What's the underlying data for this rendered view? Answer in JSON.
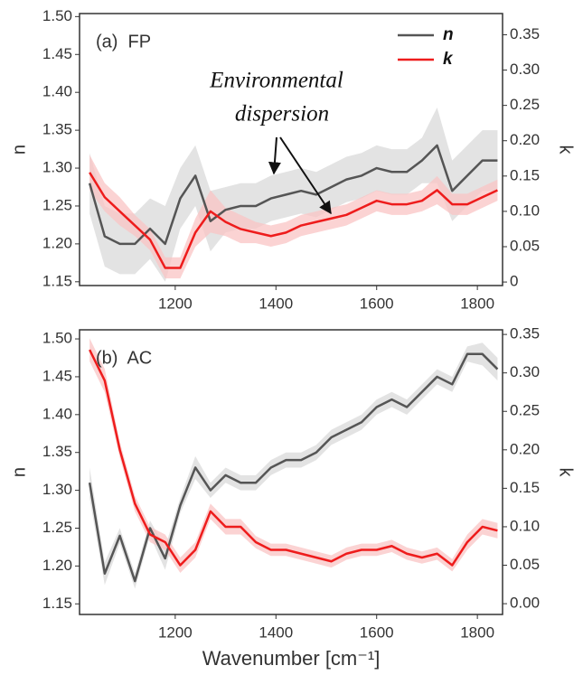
{
  "chart_data": [
    {
      "type": "line",
      "label": "(a)  FP",
      "ylabel": "n",
      "y2label": "k",
      "annotation": [
        "Environmental",
        "dispersion"
      ],
      "x": [
        1030,
        1060,
        1090,
        1120,
        1150,
        1180,
        1210,
        1240,
        1270,
        1300,
        1330,
        1360,
        1390,
        1420,
        1450,
        1480,
        1510,
        1540,
        1570,
        1600,
        1630,
        1660,
        1690,
        1720,
        1750,
        1780,
        1810,
        1840
      ],
      "xlim": [
        1010,
        1850
      ],
      "xticks": [
        1200,
        1400,
        1600,
        1800
      ],
      "ylim": [
        1.145,
        1.504
      ],
      "yticks": [
        1.15,
        {
          "value": 1.2,
          "label": "1.20"
        },
        1.25,
        {
          "value": 1.3,
          "label": "1.30"
        },
        1.35,
        {
          "value": 1.4,
          "label": "1.40"
        },
        1.45,
        {
          "value": 1.5,
          "label": "1.50"
        }
      ],
      "y2lim": [
        -0.005,
        0.38
      ],
      "y2ticks": [
        0,
        0.05,
        {
          "value": 0.1,
          "label": "0.10"
        },
        0.15,
        {
          "value": 0.2,
          "label": "0.20"
        },
        0.25,
        {
          "value": 0.3,
          "label": "0.30"
        },
        0.35
      ],
      "series": [
        {
          "name": "n",
          "color": "#555555",
          "band_color": "#d9d9d9",
          "values": [
            1.28,
            1.21,
            1.2,
            1.2,
            1.22,
            1.2,
            1.26,
            1.29,
            1.23,
            1.245,
            1.25,
            1.25,
            1.26,
            1.265,
            1.27,
            1.265,
            1.275,
            1.285,
            1.29,
            1.3,
            1.295,
            1.295,
            1.31,
            1.33,
            1.27,
            1.29,
            1.31,
            1.31
          ],
          "error": [
            0.04,
            0.04,
            0.04,
            0.04,
            0.04,
            0.05,
            0.04,
            0.04,
            0.04,
            0.03,
            0.03,
            0.03,
            0.03,
            0.03,
            0.03,
            0.03,
            0.03,
            0.03,
            0.03,
            0.03,
            0.03,
            0.03,
            0.03,
            0.05,
            0.04,
            0.04,
            0.04,
            0.04
          ]
        },
        {
          "name": "k",
          "color": "#ee1c1c",
          "band_color": "#f9c4c4",
          "axis": "y2",
          "values": [
            0.155,
            0.12,
            0.1,
            0.08,
            0.06,
            0.02,
            0.02,
            0.07,
            0.1,
            0.085,
            0.075,
            0.07,
            0.065,
            0.07,
            0.08,
            0.085,
            0.09,
            0.095,
            0.105,
            0.115,
            0.11,
            0.11,
            0.115,
            0.13,
            0.11,
            0.11,
            0.12,
            0.13
          ],
          "error": [
            0.025,
            0.02,
            0.02,
            0.015,
            0.015,
            0.015,
            0.015,
            0.02,
            0.03,
            0.02,
            0.02,
            0.015,
            0.015,
            0.015,
            0.015,
            0.015,
            0.015,
            0.015,
            0.015,
            0.015,
            0.015,
            0.015,
            0.015,
            0.02,
            0.015,
            0.015,
            0.015,
            0.015
          ]
        }
      ]
    },
    {
      "type": "line",
      "label": "(b)  AC",
      "ylabel": "n",
      "y2label": "k",
      "xlabel": "Wavenumber [cm⁻¹]",
      "x": [
        1030,
        1060,
        1090,
        1120,
        1150,
        1180,
        1210,
        1240,
        1270,
        1300,
        1330,
        1360,
        1390,
        1420,
        1450,
        1480,
        1510,
        1540,
        1570,
        1600,
        1630,
        1660,
        1690,
        1720,
        1750,
        1780,
        1810,
        1840
      ],
      "xlim": [
        1010,
        1850
      ],
      "xticks": [
        1200,
        1400,
        1600,
        1800
      ],
      "ylim": [
        1.136,
        1.512
      ],
      "yticks": [
        1.15,
        {
          "value": 1.2,
          "label": "1.20"
        },
        1.25,
        {
          "value": 1.3,
          "label": "1.30"
        },
        1.35,
        {
          "value": 1.4,
          "label": "1.40"
        },
        1.45,
        {
          "value": 1.5,
          "label": "1.50"
        }
      ],
      "y2lim": [
        -0.014,
        0.356
      ],
      "y2ticks": [
        {
          "value": 0,
          "label": "0.00"
        },
        0.05,
        {
          "value": 0.1,
          "label": "0.10"
        },
        0.15,
        {
          "value": 0.2,
          "label": "0.20"
        },
        0.25,
        {
          "value": 0.3,
          "label": "0.30"
        },
        0.35
      ],
      "series": [
        {
          "color": "#555555",
          "band_color": "#d9d9d9",
          "values": [
            1.31,
            1.19,
            1.24,
            1.18,
            1.25,
            1.21,
            1.28,
            1.33,
            1.3,
            1.32,
            1.31,
            1.31,
            1.33,
            1.34,
            1.34,
            1.35,
            1.37,
            1.38,
            1.39,
            1.41,
            1.42,
            1.41,
            1.43,
            1.45,
            1.44,
            1.48,
            1.48,
            1.46
          ],
          "error": [
            0.02,
            0.015,
            0.01,
            0.01,
            0.01,
            0.015,
            0.01,
            0.015,
            0.01,
            0.01,
            0.01,
            0.01,
            0.01,
            0.01,
            0.01,
            0.01,
            0.01,
            0.01,
            0.01,
            0.01,
            0.01,
            0.01,
            0.01,
            0.01,
            0.01,
            0.01,
            0.015,
            0.015
          ]
        },
        {
          "color": "#ee1c1c",
          "band_color": "#f9c4c4",
          "axis": "y2",
          "values": [
            0.33,
            0.29,
            0.2,
            0.13,
            0.09,
            0.08,
            0.05,
            0.07,
            0.12,
            0.1,
            0.1,
            0.08,
            0.07,
            0.07,
            0.065,
            0.06,
            0.055,
            0.065,
            0.07,
            0.07,
            0.075,
            0.065,
            0.06,
            0.065,
            0.05,
            0.08,
            0.1,
            0.095
          ],
          "error": [
            0.015,
            0.015,
            0.01,
            0.01,
            0.01,
            0.01,
            0.01,
            0.01,
            0.01,
            0.01,
            0.01,
            0.008,
            0.008,
            0.008,
            0.008,
            0.008,
            0.008,
            0.008,
            0.008,
            0.008,
            0.008,
            0.008,
            0.008,
            0.008,
            0.008,
            0.01,
            0.01,
            0.01
          ]
        }
      ]
    }
  ]
}
